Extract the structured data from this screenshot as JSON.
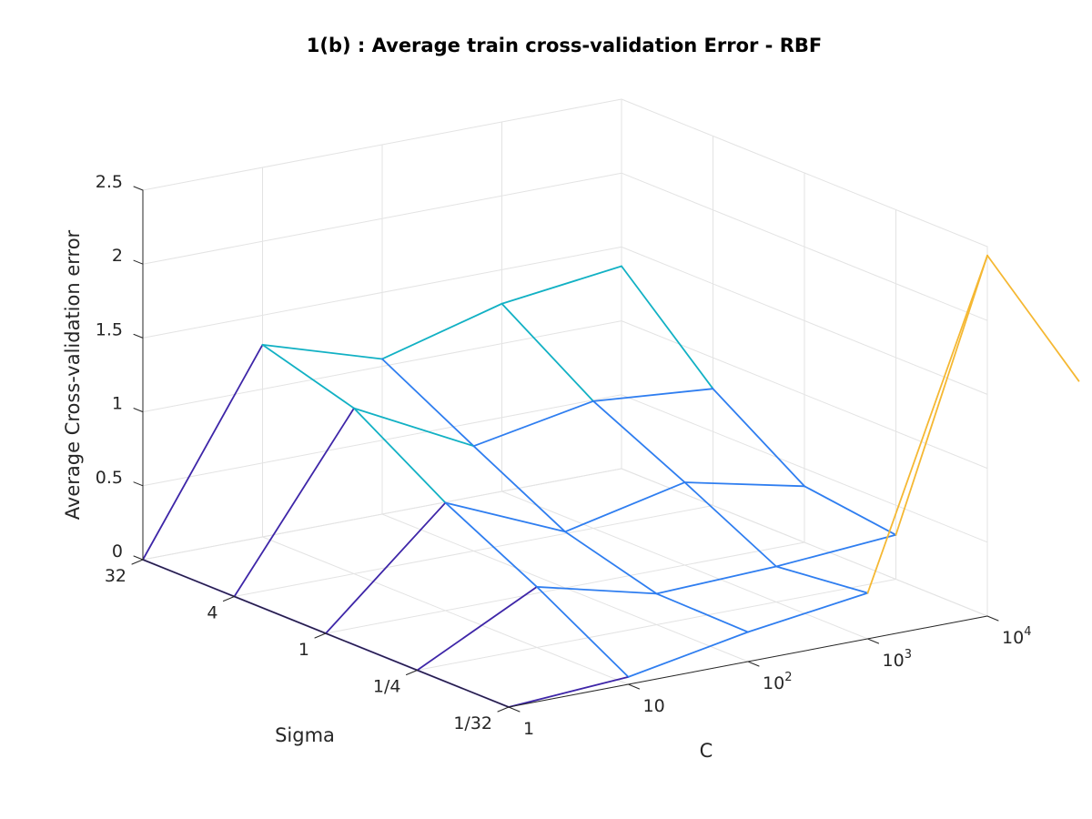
{
  "chart_data": {
    "type": "mesh3d",
    "title": "1(b) : Average train cross-validation Error - RBF",
    "zlabel": "Average Cross-validation error",
    "xlabel": "C",
    "ylabel": "Sigma",
    "x_ticks": [
      {
        "base": "1",
        "exp": ""
      },
      {
        "base": "10",
        "exp": ""
      },
      {
        "base": "10",
        "exp": "2"
      },
      {
        "base": "10",
        "exp": "3"
      },
      {
        "base": "10",
        "exp": "4"
      }
    ],
    "y_ticks": [
      "32",
      "4",
      "1",
      "1/4",
      "1/32"
    ],
    "z_ticks": [
      "0",
      "0.5",
      "1",
      "1.5",
      "2",
      "2.5"
    ],
    "zlim": [
      0,
      2.5
    ],
    "grid": true,
    "colormap": [
      "#3e26a8",
      "#2f7ef0",
      "#12b1c4",
      "#f5b833"
    ],
    "z_values": [
      [
        0.0,
        1.3,
        1.05,
        1.27,
        1.37
      ],
      [
        0.0,
        1.12,
        0.71,
        0.86,
        0.79
      ],
      [
        0.0,
        0.73,
        0.38,
        0.56,
        0.38
      ],
      [
        0.0,
        0.41,
        0.21,
        0.24,
        0.3
      ],
      [
        0.0,
        0.05,
        0.2,
        0.31,
        2.44
      ],
      [
        null,
        null,
        null,
        null,
        1.84
      ]
    ]
  }
}
